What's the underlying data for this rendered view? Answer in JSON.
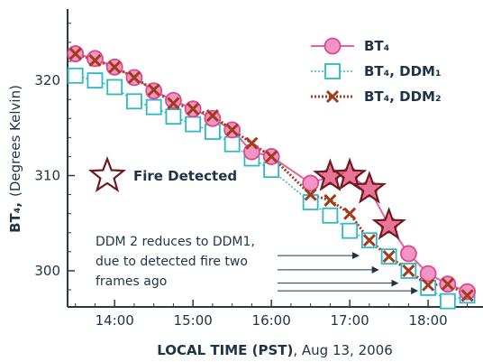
{
  "chart_data": {
    "type": "line",
    "title": "",
    "xlabel_bold": "LOCAL TIME (PST)",
    "xlabel_rest": ", Aug 13, 2006",
    "ylabel_main": "BT₄,",
    "ylabel_unit": "(Degrees Kelvin)",
    "xlim": [
      13.4,
      18.7
    ],
    "ylim": [
      296.2,
      327.5
    ],
    "x_ticks": [
      14,
      15,
      16,
      17,
      18
    ],
    "x_tick_labels": [
      "14:00",
      "15:00",
      "16:00",
      "17:00",
      "18:00"
    ],
    "y_ticks": [
      300,
      310,
      320
    ],
    "y_tick_labels": [
      "300",
      "310",
      "320"
    ],
    "grid": false,
    "legend_position": "top-right",
    "series": [
      {
        "name": "BT₄",
        "color": "#e6629e",
        "marker": "circle",
        "x": [
          13.5,
          13.75,
          14.0,
          14.25,
          14.5,
          14.75,
          15.0,
          15.25,
          15.5,
          15.75,
          16.0,
          16.5,
          16.75,
          17.0,
          17.25,
          17.5,
          17.75,
          18.0,
          18.25,
          18.5
        ],
        "y": [
          322.8,
          322.3,
          321.4,
          320.3,
          318.9,
          317.9,
          317.0,
          316.0,
          314.8,
          312.5,
          312.0,
          309.2,
          309.9,
          310.0,
          308.6,
          304.8,
          301.8,
          299.7,
          298.6,
          297.8
        ]
      },
      {
        "name": "BT₄, DDM₁",
        "color": "#2fb9c3",
        "marker": "square",
        "x": [
          13.5,
          13.75,
          14.0,
          14.25,
          14.5,
          14.75,
          15.0,
          15.25,
          15.5,
          15.75,
          16.0,
          16.5,
          16.75,
          17.0,
          17.25,
          17.5,
          17.75,
          18.0,
          18.25,
          18.5
        ],
        "y": [
          320.5,
          320.0,
          319.3,
          317.8,
          317.2,
          316.2,
          315.4,
          314.6,
          313.3,
          311.8,
          310.6,
          307.2,
          305.8,
          304.2,
          303.2,
          301.5,
          300.0,
          298.2,
          296.8,
          297.4
        ]
      },
      {
        "name": "BT₄, DDM₂",
        "color": "#a33a1a",
        "marker": "x",
        "x": [
          13.5,
          13.75,
          14.0,
          14.25,
          14.5,
          14.75,
          15.0,
          15.25,
          15.5,
          15.75,
          16.0,
          16.5,
          16.75,
          17.0,
          17.25,
          17.5,
          17.75,
          18.0,
          18.25,
          18.5
        ],
        "y": [
          322.8,
          322.1,
          321.4,
          320.3,
          319.0,
          317.6,
          317.0,
          316.3,
          314.8,
          313.4,
          312.0,
          308.0,
          307.4,
          306.0,
          303.2,
          301.5,
          300.0,
          298.5,
          298.6,
          297.4
        ]
      }
    ],
    "fire_detected": {
      "label": "Fire Detected",
      "x": [
        16.75,
        17.0,
        17.25,
        17.5
      ],
      "y": [
        309.9,
        310.0,
        308.6,
        304.8
      ]
    },
    "annotation": {
      "lines": [
        "DDM 2 reduces to DDM1,",
        "due to detected fire two",
        "frames ago"
      ],
      "targets": [
        {
          "x": 17.25,
          "y": 301.6
        },
        {
          "x": 17.5,
          "y": 300.1
        },
        {
          "x": 17.75,
          "y": 298.7
        },
        {
          "x": 18.0,
          "y": 297.9
        }
      ]
    }
  }
}
